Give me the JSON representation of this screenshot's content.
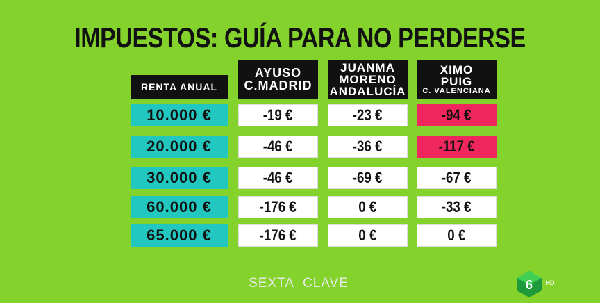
{
  "title": "IMPUESTOS: GUÍA PARA NO PERDERSE",
  "table": {
    "row_header": "RENTA ANUAL",
    "columns": [
      {
        "lines": [
          "AYUSO",
          "C.MADRID"
        ]
      },
      {
        "lines": [
          "JUANMA",
          "MORENO",
          "ANDALUCÍA"
        ]
      },
      {
        "lines": [
          "XIMO",
          "PUIG",
          "C. VALENCIANA"
        ]
      }
    ],
    "rows": [
      {
        "renta": "10.000 €",
        "cells": [
          "-19 €",
          "-23 €",
          "-94 €"
        ]
      },
      {
        "renta": "20.000 €",
        "cells": [
          "-46 €",
          "-36 €",
          "-117 €"
        ]
      },
      {
        "renta": "30.000 €",
        "cells": [
          "-46 €",
          "-69 €",
          "-67 €"
        ]
      },
      {
        "renta": "60.000 €",
        "cells": [
          "-176 €",
          "0 €",
          "-33 €"
        ]
      },
      {
        "renta": "65.000 €",
        "cells": [
          "-176 €",
          "0 €",
          "0 €"
        ]
      }
    ],
    "highlighted": [
      [
        0,
        2
      ],
      [
        1,
        2
      ]
    ],
    "highlight_color": "#f0265e"
  },
  "logo": {
    "left": "SEXTA",
    "right": "CLAVE"
  },
  "badge": "HD"
}
